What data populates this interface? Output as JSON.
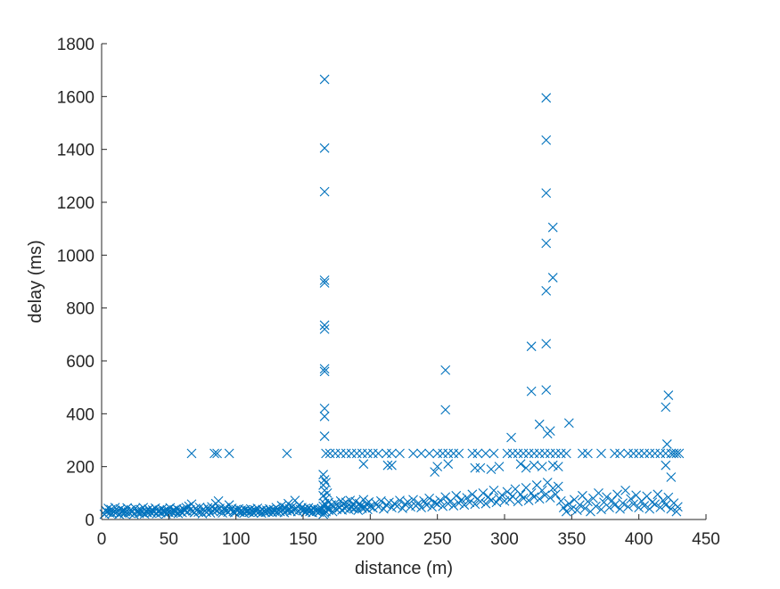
{
  "chart_data": {
    "type": "scatter",
    "title": "",
    "xlabel": "distance (m)",
    "ylabel": "delay (ms)",
    "xlim": [
      0,
      450
    ],
    "ylim": [
      0,
      1800
    ],
    "xticks": [
      "0",
      "50",
      "100",
      "150",
      "200",
      "250",
      "300",
      "350",
      "400",
      "450"
    ],
    "yticks": [
      "0",
      "200",
      "400",
      "600",
      "800",
      "1000",
      "1200",
      "1400",
      "1600",
      "1800"
    ],
    "grid": false,
    "marker": "x",
    "color": "#0072bd",
    "points": [
      [
        2,
        20
      ],
      [
        3,
        35
      ],
      [
        4,
        28
      ],
      [
        5,
        42
      ],
      [
        6,
        25
      ],
      [
        7,
        38
      ],
      [
        8,
        22
      ],
      [
        9,
        30
      ],
      [
        10,
        45
      ],
      [
        11,
        27
      ],
      [
        12,
        33
      ],
      [
        13,
        20
      ],
      [
        14,
        40
      ],
      [
        15,
        26
      ],
      [
        16,
        35
      ],
      [
        17,
        22
      ],
      [
        18,
        30
      ],
      [
        19,
        44
      ],
      [
        20,
        28
      ],
      [
        21,
        24
      ],
      [
        22,
        37
      ],
      [
        23,
        31
      ],
      [
        24,
        20
      ],
      [
        25,
        42
      ],
      [
        26,
        29
      ],
      [
        27,
        34
      ],
      [
        28,
        23
      ],
      [
        29,
        38
      ],
      [
        30,
        27
      ],
      [
        31,
        45
      ],
      [
        32,
        21
      ],
      [
        33,
        33
      ],
      [
        34,
        26
      ],
      [
        35,
        39
      ],
      [
        36,
        30
      ],
      [
        37,
        24
      ],
      [
        38,
        36
      ],
      [
        39,
        28
      ],
      [
        40,
        43
      ],
      [
        41,
        22
      ],
      [
        42,
        31
      ],
      [
        43,
        35
      ],
      [
        44,
        25
      ],
      [
        45,
        40
      ],
      [
        46,
        29
      ],
      [
        47,
        33
      ],
      [
        48,
        21
      ],
      [
        49,
        37
      ],
      [
        50,
        27
      ],
      [
        51,
        44
      ],
      [
        52,
        30
      ],
      [
        53,
        24
      ],
      [
        54,
        36
      ],
      [
        55,
        28
      ],
      [
        56,
        41
      ],
      [
        57,
        23
      ],
      [
        58,
        34
      ],
      [
        59,
        31
      ],
      [
        60,
        26
      ],
      [
        61,
        39
      ],
      [
        62,
        33
      ],
      [
        63,
        45
      ],
      [
        64,
        29
      ],
      [
        65,
        50
      ],
      [
        66,
        37
      ],
      [
        67,
        58
      ],
      [
        68,
        32
      ],
      [
        69,
        26
      ],
      [
        70,
        42
      ],
      [
        71,
        35
      ],
      [
        72,
        28
      ],
      [
        73,
        46
      ],
      [
        74,
        30
      ],
      [
        75,
        22
      ],
      [
        76,
        39
      ],
      [
        77,
        33
      ],
      [
        78,
        27
      ],
      [
        79,
        44
      ],
      [
        80,
        36
      ],
      [
        81,
        25
      ],
      [
        82,
        48
      ],
      [
        83,
        31
      ],
      [
        84,
        40
      ],
      [
        85,
        60
      ],
      [
        86,
        35
      ],
      [
        87,
        70
      ],
      [
        88,
        42
      ],
      [
        89,
        30
      ],
      [
        90,
        25
      ],
      [
        91,
        38
      ],
      [
        92,
        45
      ],
      [
        93,
        33
      ],
      [
        94,
        28
      ],
      [
        95,
        55
      ],
      [
        96,
        36
      ],
      [
        97,
        42
      ],
      [
        98,
        30
      ],
      [
        99,
        26
      ],
      [
        100,
        38
      ],
      [
        101,
        33
      ],
      [
        102,
        40
      ],
      [
        103,
        28
      ],
      [
        104,
        35
      ],
      [
        105,
        31
      ],
      [
        106,
        24
      ],
      [
        107,
        37
      ],
      [
        108,
        29
      ],
      [
        109,
        34
      ],
      [
        110,
        27
      ],
      [
        111,
        40
      ],
      [
        112,
        32
      ],
      [
        113,
        25
      ],
      [
        114,
        36
      ],
      [
        115,
        30
      ],
      [
        116,
        42
      ],
      [
        117,
        28
      ],
      [
        118,
        33
      ],
      [
        119,
        24
      ],
      [
        120,
        38
      ],
      [
        121,
        31
      ],
      [
        122,
        27
      ],
      [
        123,
        35
      ],
      [
        124,
        29
      ],
      [
        125,
        40
      ],
      [
        126,
        33
      ],
      [
        127,
        26
      ],
      [
        128,
        37
      ],
      [
        129,
        31
      ],
      [
        130,
        45
      ],
      [
        131,
        28
      ],
      [
        132,
        36
      ],
      [
        133,
        30
      ],
      [
        134,
        52
      ],
      [
        135,
        38
      ],
      [
        136,
        26
      ],
      [
        137,
        44
      ],
      [
        138,
        33
      ],
      [
        139,
        60
      ],
      [
        140,
        40
      ],
      [
        141,
        30
      ],
      [
        142,
        48
      ],
      [
        143,
        35
      ],
      [
        144,
        72
      ],
      [
        145,
        42
      ],
      [
        146,
        30
      ],
      [
        147,
        55
      ],
      [
        148,
        38
      ],
      [
        149,
        45
      ],
      [
        150,
        33
      ],
      [
        151,
        40
      ],
      [
        152,
        28
      ],
      [
        153,
        36
      ],
      [
        154,
        44
      ],
      [
        155,
        30
      ],
      [
        156,
        38
      ],
      [
        157,
        26
      ],
      [
        158,
        42
      ],
      [
        159,
        34
      ],
      [
        160,
        31
      ],
      [
        161,
        37
      ],
      [
        162,
        28
      ],
      [
        163,
        35
      ],
      [
        164,
        40
      ],
      [
        165,
        20
      ],
      [
        165,
        50
      ],
      [
        165,
        90
      ],
      [
        165,
        130
      ],
      [
        165,
        170
      ],
      [
        166,
        25
      ],
      [
        166,
        60
      ],
      [
        166,
        110
      ],
      [
        166,
        150
      ],
      [
        167,
        30
      ],
      [
        167,
        80
      ],
      [
        167,
        140
      ],
      [
        168,
        45
      ],
      [
        168,
        100
      ],
      [
        169,
        35
      ],
      [
        169,
        65
      ],
      [
        170,
        40
      ],
      [
        171,
        55
      ],
      [
        172,
        30
      ],
      [
        173,
        48
      ],
      [
        174,
        62
      ],
      [
        175,
        38
      ],
      [
        176,
        52
      ],
      [
        177,
        44
      ],
      [
        178,
        70
      ],
      [
        179,
        36
      ],
      [
        180,
        58
      ],
      [
        181,
        42
      ],
      [
        182,
        65
      ],
      [
        183,
        50
      ],
      [
        184,
        38
      ],
      [
        185,
        72
      ],
      [
        186,
        45
      ],
      [
        187,
        56
      ],
      [
        188,
        40
      ],
      [
        189,
        68
      ],
      [
        190,
        48
      ],
      [
        191,
        35
      ],
      [
        192,
        60
      ],
      [
        193,
        52
      ],
      [
        194,
        42
      ],
      [
        195,
        75
      ],
      [
        196,
        45
      ],
      [
        197,
        58
      ],
      [
        198,
        38
      ],
      [
        199,
        66
      ],
      [
        200,
        50
      ],
      [
        202,
        44
      ],
      [
        204,
        62
      ],
      [
        206,
        48
      ],
      [
        208,
        70
      ],
      [
        210,
        40
      ],
      [
        212,
        55
      ],
      [
        214,
        65
      ],
      [
        216,
        45
      ],
      [
        218,
        60
      ],
      [
        220,
        50
      ],
      [
        222,
        72
      ],
      [
        224,
        42
      ],
      [
        226,
        58
      ],
      [
        228,
        66
      ],
      [
        230,
        48
      ],
      [
        232,
        75
      ],
      [
        234,
        52
      ],
      [
        236,
        62
      ],
      [
        238,
        45
      ],
      [
        240,
        70
      ],
      [
        242,
        55
      ],
      [
        244,
        80
      ],
      [
        246,
        48
      ],
      [
        248,
        65
      ],
      [
        250,
        58
      ],
      [
        252,
        72
      ],
      [
        254,
        50
      ],
      [
        256,
        85
      ],
      [
        258,
        60
      ],
      [
        260,
        70
      ],
      [
        262,
        52
      ],
      [
        264,
        90
      ],
      [
        266,
        62
      ],
      [
        268,
        75
      ],
      [
        270,
        55
      ],
      [
        272,
        82
      ],
      [
        274,
        65
      ],
      [
        276,
        95
      ],
      [
        278,
        58
      ],
      [
        280,
        78
      ],
      [
        282,
        68
      ],
      [
        284,
        100
      ],
      [
        286,
        60
      ],
      [
        288,
        85
      ],
      [
        290,
        72
      ],
      [
        292,
        110
      ],
      [
        294,
        65
      ],
      [
        296,
        80
      ],
      [
        298,
        92
      ],
      [
        300,
        70
      ],
      [
        302,
        105
      ],
      [
        304,
        75
      ],
      [
        306,
        88
      ],
      [
        308,
        115
      ],
      [
        310,
        68
      ],
      [
        312,
        95
      ],
      [
        314,
        80
      ],
      [
        316,
        120
      ],
      [
        318,
        72
      ],
      [
        320,
        100
      ],
      [
        322,
        85
      ],
      [
        324,
        130
      ],
      [
        326,
        78
      ],
      [
        328,
        110
      ],
      [
        330,
        92
      ],
      [
        332,
        140
      ],
      [
        334,
        82
      ],
      [
        336,
        118
      ],
      [
        338,
        95
      ],
      [
        340,
        125
      ],
      [
        342,
        70
      ],
      [
        344,
        45
      ],
      [
        346,
        30
      ],
      [
        348,
        60
      ],
      [
        350,
        40
      ],
      [
        352,
        75
      ],
      [
        354,
        35
      ],
      [
        356,
        55
      ],
      [
        358,
        90
      ],
      [
        360,
        42
      ],
      [
        362,
        68
      ],
      [
        364,
        30
      ],
      [
        366,
        80
      ],
      [
        368,
        50
      ],
      [
        370,
        100
      ],
      [
        372,
        38
      ],
      [
        374,
        65
      ],
      [
        376,
        85
      ],
      [
        378,
        45
      ],
      [
        380,
        72
      ],
      [
        382,
        55
      ],
      [
        384,
        95
      ],
      [
        386,
        40
      ],
      [
        388,
        62
      ],
      [
        390,
        110
      ],
      [
        392,
        48
      ],
      [
        394,
        78
      ],
      [
        396,
        58
      ],
      [
        398,
        92
      ],
      [
        400,
        45
      ],
      [
        402,
        70
      ],
      [
        404,
        52
      ],
      [
        406,
        88
      ],
      [
        408,
        40
      ],
      [
        410,
        65
      ],
      [
        412,
        58
      ],
      [
        414,
        95
      ],
      [
        416,
        46
      ],
      [
        418,
        72
      ],
      [
        420,
        55
      ],
      [
        422,
        84
      ],
      [
        424,
        40
      ],
      [
        426,
        62
      ],
      [
        428,
        30
      ],
      [
        429,
        48
      ],
      [
        67,
        250
      ],
      [
        84,
        250
      ],
      [
        86,
        250
      ],
      [
        95,
        250
      ],
      [
        138,
        250
      ],
      [
        167,
        250
      ],
      [
        170,
        250
      ],
      [
        174,
        250
      ],
      [
        178,
        250
      ],
      [
        182,
        250
      ],
      [
        186,
        250
      ],
      [
        190,
        250
      ],
      [
        194,
        250
      ],
      [
        198,
        250
      ],
      [
        202,
        250
      ],
      [
        206,
        250
      ],
      [
        212,
        250
      ],
      [
        216,
        250
      ],
      [
        222,
        250
      ],
      [
        232,
        250
      ],
      [
        238,
        250
      ],
      [
        244,
        250
      ],
      [
        250,
        250
      ],
      [
        254,
        250
      ],
      [
        258,
        250
      ],
      [
        262,
        250
      ],
      [
        266,
        250
      ],
      [
        276,
        250
      ],
      [
        280,
        250
      ],
      [
        286,
        250
      ],
      [
        292,
        250
      ],
      [
        302,
        250
      ],
      [
        306,
        250
      ],
      [
        310,
        250
      ],
      [
        314,
        250
      ],
      [
        318,
        250
      ],
      [
        322,
        250
      ],
      [
        326,
        250
      ],
      [
        330,
        250
      ],
      [
        334,
        250
      ],
      [
        338,
        250
      ],
      [
        342,
        250
      ],
      [
        346,
        250
      ],
      [
        358,
        250
      ],
      [
        362,
        250
      ],
      [
        372,
        250
      ],
      [
        382,
        250
      ],
      [
        386,
        250
      ],
      [
        392,
        250
      ],
      [
        396,
        250
      ],
      [
        400,
        250
      ],
      [
        404,
        250
      ],
      [
        408,
        250
      ],
      [
        412,
        250
      ],
      [
        416,
        250
      ],
      [
        420,
        250
      ],
      [
        424,
        250
      ],
      [
        426,
        250
      ],
      [
        428,
        250
      ],
      [
        430,
        250
      ],
      [
        195,
        210
      ],
      [
        213,
        205
      ],
      [
        216,
        205
      ],
      [
        258,
        210
      ],
      [
        248,
        180
      ],
      [
        278,
        195
      ],
      [
        282,
        195
      ],
      [
        290,
        190
      ],
      [
        296,
        200
      ],
      [
        312,
        210
      ],
      [
        316,
        195
      ],
      [
        322,
        205
      ],
      [
        328,
        200
      ],
      [
        336,
        205
      ],
      [
        340,
        200
      ],
      [
        250,
        200
      ],
      [
        420,
        205
      ],
      [
        166,
        315
      ],
      [
        166,
        390
      ],
      [
        166,
        420
      ],
      [
        166,
        560
      ],
      [
        166,
        570
      ],
      [
        166,
        720
      ],
      [
        166,
        735
      ],
      [
        166,
        895
      ],
      [
        166,
        905
      ],
      [
        166,
        1240
      ],
      [
        166,
        1405
      ],
      [
        166,
        1665
      ],
      [
        256,
        415
      ],
      [
        256,
        565
      ],
      [
        305,
        310
      ],
      [
        320,
        485
      ],
      [
        320,
        655
      ],
      [
        326,
        360
      ],
      [
        331,
        865
      ],
      [
        331,
        1045
      ],
      [
        331,
        1235
      ],
      [
        331,
        1435
      ],
      [
        331,
        1595
      ],
      [
        331,
        665
      ],
      [
        331,
        490
      ],
      [
        332,
        325
      ],
      [
        334,
        335
      ],
      [
        336,
        1105
      ],
      [
        336,
        915
      ],
      [
        348,
        365
      ],
      [
        420,
        425
      ],
      [
        421,
        285
      ],
      [
        422,
        470
      ],
      [
        424,
        160
      ]
    ]
  }
}
